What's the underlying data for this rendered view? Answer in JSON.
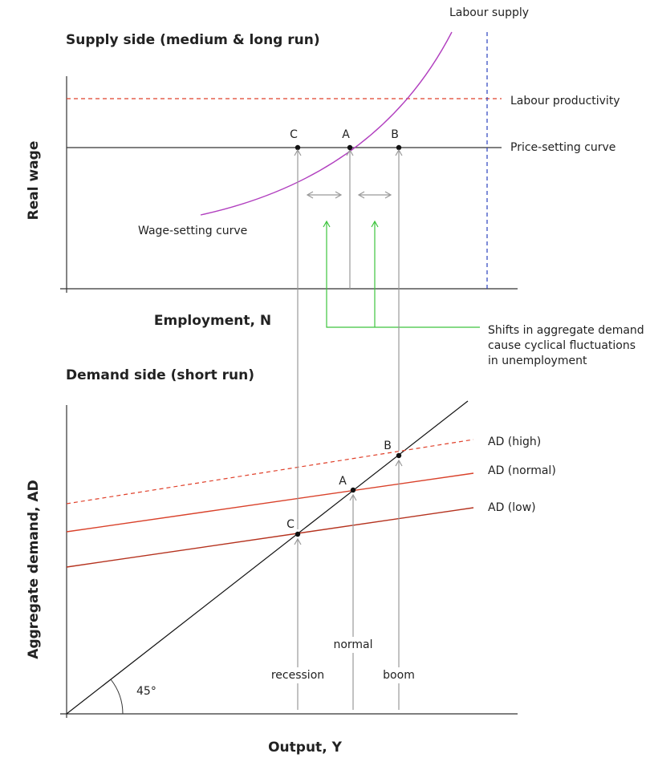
{
  "supply_panel": {
    "title": "Supply side (medium & long run)",
    "y_axis_label": "Real wage",
    "x_axis_label": "Employment, N",
    "curve_labels": {
      "labour_supply": "Labour supply",
      "labour_productivity": "Labour productivity",
      "price_setting": "Price-setting curve",
      "wage_setting": "Wage-setting curve"
    },
    "points": [
      "C",
      "A",
      "B"
    ]
  },
  "annotation": {
    "lines": [
      "Shifts in aggregate demand",
      "cause cyclical fluctuations",
      "in unemployment"
    ]
  },
  "demand_panel": {
    "title": "Demand side (short run)",
    "y_axis_label": "Aggregate demand, AD",
    "x_axis_label": "Output, Y",
    "curve_labels": {
      "ad_high": "AD (high)",
      "ad_normal": "AD (normal)",
      "ad_low": "AD (low)"
    },
    "points": [
      "C",
      "A",
      "B"
    ],
    "states": [
      "recession",
      "normal",
      "boom"
    ],
    "angle_label": "45°"
  }
}
